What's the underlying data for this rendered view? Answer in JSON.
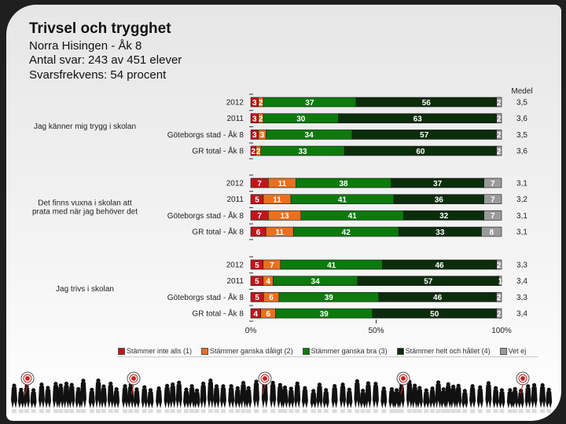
{
  "header": {
    "title": "Trivsel och trygghet",
    "lines": [
      "Norra Hisingen - Åk 8",
      "Antal svar: 243 av 451 elever",
      "Svarsfrekvens: 54 procent"
    ]
  },
  "colors": {
    "c1": "#c0161c",
    "c2": "#e9701f",
    "c3": "#0c7a0c",
    "c4": "#0c2d0c",
    "c5": "#9a9a9a"
  },
  "chart_data": {
    "type": "bar",
    "orientation": "horizontal-stacked-100",
    "mean_header": "Medel",
    "x_ticks": [
      "0%",
      "50%",
      "100%"
    ],
    "xlim": [
      0,
      100
    ],
    "legend_position": "bottom",
    "legend": [
      "Stämmer inte alls (1)",
      "Stämmer ganska dåligt (2)",
      "Stämmer ganska bra (3)",
      "Stämmer helt och hållet (4)",
      "Vet ej"
    ],
    "groups": [
      {
        "question": "Jag känner mig trygg i skolan",
        "rows": [
          {
            "label": "2012",
            "values": [
              3,
              2,
              37,
              56,
              2
            ],
            "mean": "3,5"
          },
          {
            "label": "2011",
            "values": [
              3,
              2,
              30,
              63,
              2
            ],
            "mean": "3,6"
          },
          {
            "label": "Göteborgs stad - Åk 8",
            "values": [
              3,
              3,
              34,
              57,
              2
            ],
            "mean": "3,5"
          },
          {
            "label": "GR total - Åk 8",
            "values": [
              2,
              2,
              33,
              60,
              2
            ],
            "mean": "3,6"
          }
        ]
      },
      {
        "question": "Det finns vuxna i skolan att prata med när jag behöver det",
        "rows": [
          {
            "label": "2012",
            "values": [
              7,
              11,
              38,
              37,
              7
            ],
            "mean": "3,1"
          },
          {
            "label": "2011",
            "values": [
              5,
              11,
              41,
              36,
              7
            ],
            "mean": "3,2"
          },
          {
            "label": "Göteborgs stad - Åk 8",
            "values": [
              7,
              13,
              41,
              32,
              7
            ],
            "mean": "3,1"
          },
          {
            "label": "GR total - Åk 8",
            "values": [
              6,
              11,
              42,
              33,
              8
            ],
            "mean": "3,1"
          }
        ]
      },
      {
        "question": "Jag trivs i skolan",
        "rows": [
          {
            "label": "2012",
            "values": [
              5,
              7,
              41,
              46,
              2
            ],
            "mean": "3,3"
          },
          {
            "label": "2011",
            "values": [
              5,
              4,
              34,
              57,
              1
            ],
            "mean": "3,4"
          },
          {
            "label": "Göteborgs stad - Åk 8",
            "values": [
              5,
              6,
              39,
              46,
              2
            ],
            "mean": "3,3"
          },
          {
            "label": "GR total - Åk 8",
            "values": [
              4,
              6,
              39,
              50,
              2
            ],
            "mean": "3,4"
          }
        ]
      }
    ]
  }
}
